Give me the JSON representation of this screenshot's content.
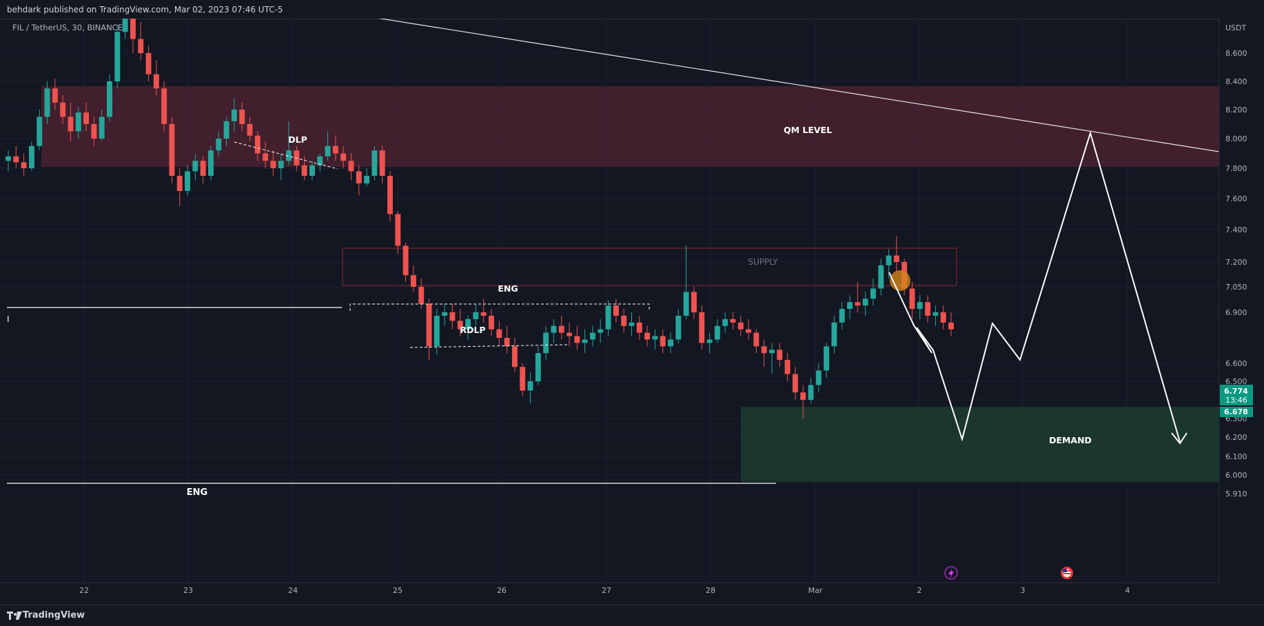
{
  "header": {
    "published_text": "behdark published on TradingView.com, Mar 02, 2023 07:46 UTC-5"
  },
  "footer": {
    "brand": "TradingView",
    "logo_icon": "tradingview-logo-icon"
  },
  "chart_data": {
    "type": "candlestick",
    "symbol_label": "FIL / TetherUS, 30, BINANCE",
    "currency": "USDT",
    "x_ticks": [
      "22",
      "23",
      "24",
      "25",
      "26",
      "27",
      "28",
      "Mar",
      "2",
      "3",
      "4"
    ],
    "y_ticks": [
      "8.600",
      "8.400",
      "8.200",
      "8.000",
      "7.800",
      "7.600",
      "7.400",
      "7.200",
      "7.050",
      "6.900",
      "6.600",
      "6.500",
      "6.400",
      "6.300",
      "6.200",
      "6.100",
      "6.000",
      "5.910"
    ],
    "last_price": "6.774",
    "countdown": "13:46",
    "secondary_price": "6.678",
    "colors": {
      "up": "#26a69a",
      "down": "#ef5350",
      "background": "#131722",
      "grid": "#1e222d",
      "axis_text": "#b2b5be",
      "drawing": "#ffffff",
      "qm_zone": "#5d2533",
      "supply_border": "#8b2a2a",
      "demand_zone": "#1d3a30",
      "price_badge": "#089981"
    },
    "zones": [
      {
        "name": "qm-level",
        "label": "QM LEVEL"
      },
      {
        "name": "supply",
        "label": "SUPPLY"
      },
      {
        "name": "demand",
        "label": "DEMAND"
      }
    ],
    "annotations": [
      "DLP",
      "ENG",
      "RDLP",
      "ENG"
    ],
    "event_icons": [
      "lightning-icon",
      "us-flag-icon"
    ],
    "candles": [
      {
        "o": 7.85,
        "h": 7.92,
        "l": 7.78,
        "c": 7.88
      },
      {
        "o": 7.88,
        "h": 7.95,
        "l": 7.8,
        "c": 7.84
      },
      {
        "o": 7.84,
        "h": 7.9,
        "l": 7.75,
        "c": 7.8
      },
      {
        "o": 7.8,
        "h": 7.98,
        "l": 7.78,
        "c": 7.95
      },
      {
        "o": 7.95,
        "h": 8.2,
        "l": 7.92,
        "c": 8.15
      },
      {
        "o": 8.15,
        "h": 8.4,
        "l": 8.1,
        "c": 8.35
      },
      {
        "o": 8.35,
        "h": 8.42,
        "l": 8.2,
        "c": 8.25
      },
      {
        "o": 8.25,
        "h": 8.3,
        "l": 8.1,
        "c": 8.15
      },
      {
        "o": 8.15,
        "h": 8.25,
        "l": 7.98,
        "c": 8.05
      },
      {
        "o": 8.05,
        "h": 8.22,
        "l": 8.0,
        "c": 8.18
      },
      {
        "o": 8.18,
        "h": 8.25,
        "l": 8.05,
        "c": 8.1
      },
      {
        "o": 8.1,
        "h": 8.15,
        "l": 7.95,
        "c": 8.0
      },
      {
        "o": 8.0,
        "h": 8.2,
        "l": 7.98,
        "c": 8.15
      },
      {
        "o": 8.15,
        "h": 8.45,
        "l": 8.12,
        "c": 8.4
      },
      {
        "o": 8.4,
        "h": 8.8,
        "l": 8.35,
        "c": 8.75
      },
      {
        "o": 8.75,
        "h": 8.95,
        "l": 8.7,
        "c": 8.85
      },
      {
        "o": 8.85,
        "h": 8.95,
        "l": 8.6,
        "c": 8.7
      },
      {
        "o": 8.7,
        "h": 8.82,
        "l": 8.55,
        "c": 8.6
      },
      {
        "o": 8.6,
        "h": 8.65,
        "l": 8.4,
        "c": 8.45
      },
      {
        "o": 8.45,
        "h": 8.55,
        "l": 8.3,
        "c": 8.35
      },
      {
        "o": 8.35,
        "h": 8.4,
        "l": 8.05,
        "c": 8.1
      },
      {
        "o": 8.1,
        "h": 8.15,
        "l": 7.7,
        "c": 7.75
      },
      {
        "o": 7.75,
        "h": 7.8,
        "l": 7.55,
        "c": 7.65
      },
      {
        "o": 7.65,
        "h": 7.82,
        "l": 7.62,
        "c": 7.78
      },
      {
        "o": 7.78,
        "h": 7.9,
        "l": 7.72,
        "c": 7.85
      },
      {
        "o": 7.85,
        "h": 7.88,
        "l": 7.7,
        "c": 7.75
      },
      {
        "o": 7.75,
        "h": 7.95,
        "l": 7.72,
        "c": 7.92
      },
      {
        "o": 7.92,
        "h": 8.05,
        "l": 7.88,
        "c": 8.0
      },
      {
        "o": 8.0,
        "h": 8.15,
        "l": 7.95,
        "c": 8.12
      },
      {
        "o": 8.12,
        "h": 8.28,
        "l": 8.05,
        "c": 8.2
      },
      {
        "o": 8.2,
        "h": 8.25,
        "l": 8.05,
        "c": 8.1
      },
      {
        "o": 8.1,
        "h": 8.15,
        "l": 7.98,
        "c": 8.02
      },
      {
        "o": 8.02,
        "h": 8.05,
        "l": 7.85,
        "c": 7.9
      },
      {
        "o": 7.9,
        "h": 7.98,
        "l": 7.8,
        "c": 7.85
      },
      {
        "o": 7.85,
        "h": 7.92,
        "l": 7.75,
        "c": 7.8
      },
      {
        "o": 7.8,
        "h": 7.9,
        "l": 7.72,
        "c": 7.85
      },
      {
        "o": 7.85,
        "h": 8.12,
        "l": 7.82,
        "c": 7.92
      },
      {
        "o": 7.92,
        "h": 7.95,
        "l": 7.78,
        "c": 7.82
      },
      {
        "o": 7.82,
        "h": 7.88,
        "l": 7.72,
        "c": 7.75
      },
      {
        "o": 7.75,
        "h": 7.85,
        "l": 7.72,
        "c": 7.82
      },
      {
        "o": 7.82,
        "h": 7.9,
        "l": 7.78,
        "c": 7.88
      },
      {
        "o": 7.88,
        "h": 8.05,
        "l": 7.85,
        "c": 7.95
      },
      {
        "o": 7.95,
        "h": 8.02,
        "l": 7.85,
        "c": 7.9
      },
      {
        "o": 7.9,
        "h": 7.95,
        "l": 7.8,
        "c": 7.85
      },
      {
        "o": 7.85,
        "h": 7.9,
        "l": 7.72,
        "c": 7.78
      },
      {
        "o": 7.78,
        "h": 7.82,
        "l": 7.62,
        "c": 7.7
      },
      {
        "o": 7.7,
        "h": 7.8,
        "l": 7.68,
        "c": 7.75
      },
      {
        "o": 7.75,
        "h": 7.95,
        "l": 7.72,
        "c": 7.92
      },
      {
        "o": 7.92,
        "h": 7.95,
        "l": 7.7,
        "c": 7.75
      },
      {
        "o": 7.75,
        "h": 7.78,
        "l": 7.45,
        "c": 7.5
      },
      {
        "o": 7.5,
        "h": 7.52,
        "l": 7.25,
        "c": 7.3
      },
      {
        "o": 7.3,
        "h": 7.32,
        "l": 7.08,
        "c": 7.12
      },
      {
        "o": 7.12,
        "h": 7.18,
        "l": 7.02,
        "c": 7.05
      },
      {
        "o": 7.05,
        "h": 7.1,
        "l": 6.92,
        "c": 6.95
      },
      {
        "o": 6.95,
        "h": 6.98,
        "l": 6.62,
        "c": 6.7
      },
      {
        "o": 6.7,
        "h": 6.92,
        "l": 6.65,
        "c": 6.88
      },
      {
        "o": 6.88,
        "h": 6.95,
        "l": 6.82,
        "c": 6.9
      },
      {
        "o": 6.9,
        "h": 6.95,
        "l": 6.8,
        "c": 6.85
      },
      {
        "o": 6.85,
        "h": 6.92,
        "l": 6.76,
        "c": 6.8
      },
      {
        "o": 6.8,
        "h": 6.88,
        "l": 6.74,
        "c": 6.86
      },
      {
        "o": 6.86,
        "h": 6.95,
        "l": 6.82,
        "c": 6.9
      },
      {
        "o": 6.9,
        "h": 6.98,
        "l": 6.84,
        "c": 6.88
      },
      {
        "o": 6.88,
        "h": 6.92,
        "l": 6.76,
        "c": 6.8
      },
      {
        "o": 6.8,
        "h": 6.85,
        "l": 6.7,
        "c": 6.75
      },
      {
        "o": 6.75,
        "h": 6.82,
        "l": 6.66,
        "c": 6.7
      },
      {
        "o": 6.7,
        "h": 6.75,
        "l": 6.55,
        "c": 6.58
      },
      {
        "o": 6.58,
        "h": 6.6,
        "l": 6.42,
        "c": 6.45
      },
      {
        "o": 6.45,
        "h": 6.55,
        "l": 6.38,
        "c": 6.5
      },
      {
        "o": 6.5,
        "h": 6.7,
        "l": 6.48,
        "c": 6.66
      },
      {
        "o": 6.66,
        "h": 6.82,
        "l": 6.62,
        "c": 6.78
      },
      {
        "o": 6.78,
        "h": 6.86,
        "l": 6.72,
        "c": 6.82
      },
      {
        "o": 6.82,
        "h": 6.88,
        "l": 6.74,
        "c": 6.78
      },
      {
        "o": 6.78,
        "h": 6.84,
        "l": 6.7,
        "c": 6.76
      },
      {
        "o": 6.76,
        "h": 6.82,
        "l": 6.68,
        "c": 6.72
      },
      {
        "o": 6.72,
        "h": 6.8,
        "l": 6.66,
        "c": 6.74
      },
      {
        "o": 6.74,
        "h": 6.82,
        "l": 6.7,
        "c": 6.78
      },
      {
        "o": 6.78,
        "h": 6.86,
        "l": 6.72,
        "c": 6.8
      },
      {
        "o": 6.8,
        "h": 6.97,
        "l": 6.76,
        "c": 6.94
      },
      {
        "o": 6.94,
        "h": 6.98,
        "l": 6.84,
        "c": 6.88
      },
      {
        "o": 6.88,
        "h": 6.92,
        "l": 6.78,
        "c": 6.82
      },
      {
        "o": 6.82,
        "h": 6.9,
        "l": 6.76,
        "c": 6.84
      },
      {
        "o": 6.84,
        "h": 6.88,
        "l": 6.74,
        "c": 6.78
      },
      {
        "o": 6.78,
        "h": 6.82,
        "l": 6.7,
        "c": 6.74
      },
      {
        "o": 6.74,
        "h": 6.8,
        "l": 6.68,
        "c": 6.76
      },
      {
        "o": 6.76,
        "h": 6.8,
        "l": 6.66,
        "c": 6.7
      },
      {
        "o": 6.7,
        "h": 6.78,
        "l": 6.66,
        "c": 6.74
      },
      {
        "o": 6.74,
        "h": 6.92,
        "l": 6.72,
        "c": 6.88
      },
      {
        "o": 6.88,
        "h": 7.3,
        "l": 6.86,
        "c": 7.02
      },
      {
        "o": 7.02,
        "h": 7.05,
        "l": 6.86,
        "c": 6.9
      },
      {
        "o": 6.9,
        "h": 6.94,
        "l": 6.68,
        "c": 6.72
      },
      {
        "o": 6.72,
        "h": 6.78,
        "l": 6.66,
        "c": 6.74
      },
      {
        "o": 6.74,
        "h": 6.86,
        "l": 6.72,
        "c": 6.82
      },
      {
        "o": 6.82,
        "h": 6.9,
        "l": 6.78,
        "c": 6.86
      },
      {
        "o": 6.86,
        "h": 6.9,
        "l": 6.8,
        "c": 6.84
      },
      {
        "o": 6.84,
        "h": 6.88,
        "l": 6.76,
        "c": 6.8
      },
      {
        "o": 6.8,
        "h": 6.86,
        "l": 6.74,
        "c": 6.78
      },
      {
        "o": 6.78,
        "h": 6.8,
        "l": 6.66,
        "c": 6.7
      },
      {
        "o": 6.7,
        "h": 6.74,
        "l": 6.58,
        "c": 6.66
      },
      {
        "o": 6.66,
        "h": 6.72,
        "l": 6.54,
        "c": 6.68
      },
      {
        "o": 6.68,
        "h": 6.72,
        "l": 6.58,
        "c": 6.62
      },
      {
        "o": 6.62,
        "h": 6.66,
        "l": 6.5,
        "c": 6.54
      },
      {
        "o": 6.54,
        "h": 6.58,
        "l": 6.4,
        "c": 6.44
      },
      {
        "o": 6.44,
        "h": 6.48,
        "l": 6.3,
        "c": 6.4
      },
      {
        "o": 6.4,
        "h": 6.52,
        "l": 6.38,
        "c": 6.48
      },
      {
        "o": 6.48,
        "h": 6.6,
        "l": 6.44,
        "c": 6.56
      },
      {
        "o": 6.56,
        "h": 6.72,
        "l": 6.52,
        "c": 6.7
      },
      {
        "o": 6.7,
        "h": 6.88,
        "l": 6.66,
        "c": 6.84
      },
      {
        "o": 6.84,
        "h": 6.96,
        "l": 6.8,
        "c": 6.92
      },
      {
        "o": 6.92,
        "h": 7.0,
        "l": 6.86,
        "c": 6.96
      },
      {
        "o": 6.96,
        "h": 7.08,
        "l": 6.9,
        "c": 6.94
      },
      {
        "o": 6.94,
        "h": 7.02,
        "l": 6.88,
        "c": 6.98
      },
      {
        "o": 6.98,
        "h": 7.1,
        "l": 6.94,
        "c": 7.04
      },
      {
        "o": 7.04,
        "h": 7.22,
        "l": 7.0,
        "c": 7.18
      },
      {
        "o": 7.18,
        "h": 7.28,
        "l": 7.1,
        "c": 7.24
      },
      {
        "o": 7.24,
        "h": 7.36,
        "l": 7.14,
        "c": 7.2
      },
      {
        "o": 7.2,
        "h": 7.22,
        "l": 7.0,
        "c": 7.04
      },
      {
        "o": 7.04,
        "h": 7.08,
        "l": 6.86,
        "c": 6.92
      },
      {
        "o": 6.92,
        "h": 7.0,
        "l": 6.86,
        "c": 6.96
      },
      {
        "o": 6.96,
        "h": 7.0,
        "l": 6.84,
        "c": 6.88
      },
      {
        "o": 6.88,
        "h": 6.94,
        "l": 6.82,
        "c": 6.9
      },
      {
        "o": 6.9,
        "h": 6.94,
        "l": 6.8,
        "c": 6.84
      },
      {
        "o": 6.84,
        "h": 6.9,
        "l": 6.76,
        "c": 6.8
      }
    ]
  }
}
